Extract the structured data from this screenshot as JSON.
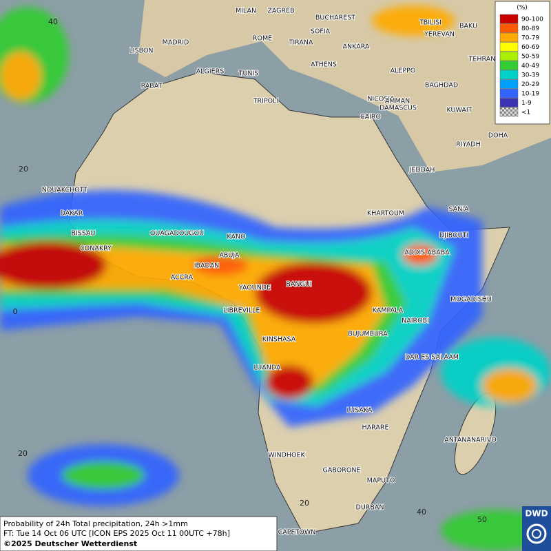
{
  "legend": {
    "unit": "(%)",
    "entries": [
      {
        "label": "90-100",
        "color": "#c80000"
      },
      {
        "label": "80-89",
        "color": "#ff5a00"
      },
      {
        "label": "70-79",
        "color": "#ffaa00"
      },
      {
        "label": "60-69",
        "color": "#ffff00"
      },
      {
        "label": "50-59",
        "color": "#aaee00"
      },
      {
        "label": "40-49",
        "color": "#33cc33"
      },
      {
        "label": "30-39",
        "color": "#00d2c8"
      },
      {
        "label": "20-29",
        "color": "#00a0ff"
      },
      {
        "label": "10-19",
        "color": "#3264ff"
      },
      {
        "label": "1-9",
        "color": "#3c32b4"
      },
      {
        "label": "<1",
        "color": "#b4b4b4"
      }
    ]
  },
  "cities": [
    "MILAN",
    "ZAGREB",
    "BUCHAREST",
    "TBILISI",
    "BAKU",
    "SOFIA",
    "ROME",
    "YEREVAN",
    "MADRID",
    "TIRANA",
    "ANKARA",
    "LISBON",
    "TEHRAN",
    "ALGIERS",
    "TUNIS",
    "ATHENS",
    "ALEPPO",
    "RABAT",
    "NICOSIA",
    "BAGHDAD",
    "DAMASCUS",
    "TRIPOLI",
    "AMMAN",
    "KUWAIT",
    "CAIRO",
    "DOHA",
    "RIYADH",
    "JEDDAH",
    "NOUAKCHOTT",
    "SAN'A",
    "KHARTOUM",
    "DAKAR",
    "DJIBOUTI",
    "BISSAU",
    "OUAGADOUGOU",
    "KANO",
    "CONAKRY",
    "ABUJA",
    "ADDIS ABABA",
    "IBADAN",
    "ACCRA",
    "BANGUI",
    "YAOUNDE",
    "MOGADISHU",
    "LIBREVILLE",
    "KAMPALA",
    "NAIROBI",
    "BUJUMBURA",
    "KINSHASA",
    "DAR ES SALAAM",
    "LUANDA",
    "LUSAKA",
    "HARARE",
    "ANTANANARIVO",
    "WINDHOEK",
    "GABORONE",
    "MAPUTO",
    "DURBAN",
    "CAPETOWN"
  ],
  "grid_labels": [
    "40",
    "20",
    "0",
    "20",
    "20",
    "40",
    "50"
  ],
  "info": {
    "line1": "Probability of 24h Total precipitation, 24h >1mm",
    "line2": "FT: Tue 14 Oct 06 UTC [ICON EPS 2025 Oct 11 00UTC +78h]",
    "line3": "©2025 Deutscher Wetterdienst"
  },
  "logo": "DWD"
}
